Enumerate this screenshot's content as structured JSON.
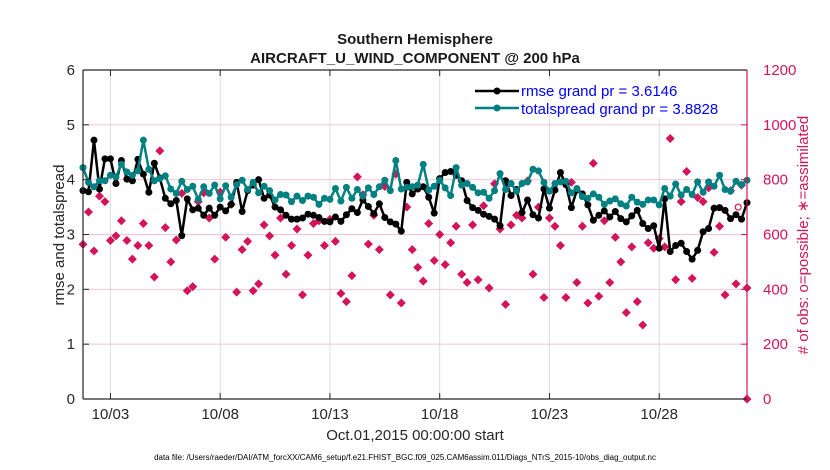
{
  "chart_data": {
    "type": "line",
    "title": "Southern Hemisphere",
    "subtitle": "AIRCRAFT_U_WIND_COMPONENT @ 200 hPa",
    "xlabel": "Oct.01,2015 00:00:00 start",
    "ylabel": "rmse and totalspread",
    "y2label": "# of obs: o=possible; ∗=assimilated",
    "footer": "data file: /Users/raeder/DAI/ATM_forcXX/CAM6_setup/f.e21.FHIST_BGC.f09_025.CAM6assim.011/Diags_NTrS_2015-10/obs_diag_output.nc",
    "x_unit": "days since Oct.01,2015 00:00",
    "xlim": [
      0.75,
      31.0
    ],
    "ylim": [
      0,
      6
    ],
    "y2lim": [
      0,
      1200
    ],
    "yticks": [
      0,
      1,
      2,
      3,
      4,
      5,
      6
    ],
    "y2ticks": [
      0,
      200,
      400,
      600,
      800,
      1000,
      1200
    ],
    "xticks": [
      {
        "x": 2.0,
        "label": "10/03"
      },
      {
        "x": 7.0,
        "label": "10/08"
      },
      {
        "x": 12.0,
        "label": "10/13"
      },
      {
        "x": 17.0,
        "label": "10/18"
      },
      {
        "x": 22.0,
        "label": "10/23"
      },
      {
        "x": 27.0,
        "label": "10/28"
      }
    ],
    "grid": true,
    "legend_position": "top-right",
    "colors": {
      "rmse": "#000000",
      "spread": "#008080",
      "obs": "#d4145a",
      "axis": "#262626",
      "right_axis": "#d4145a",
      "legend_text": "#0000ff",
      "grid": "#dcdcdc",
      "hgrid": "#f2c4d4"
    },
    "x_start": 0.75,
    "x_step": 0.25,
    "series": [
      {
        "name": "rmse grand pr = 3.6146",
        "axis": "left",
        "values": [
          3.8,
          3.78,
          4.72,
          3.83,
          4.38,
          4.38,
          3.93,
          4.35,
          4.01,
          3.98,
          4.37,
          4.1,
          3.77,
          4.3,
          4.03,
          3.66,
          3.56,
          3.62,
          2.98,
          3.65,
          3.45,
          3.48,
          3.35,
          3.48,
          3.35,
          3.5,
          3.43,
          3.55,
          3.95,
          3.42,
          3.8,
          3.9,
          4.0,
          3.66,
          3.72,
          3.5,
          3.45,
          3.35,
          3.28,
          3.28,
          3.3,
          3.37,
          3.35,
          3.31,
          3.24,
          3.23,
          3.32,
          3.24,
          3.36,
          3.47,
          3.4,
          3.63,
          3.51,
          3.38,
          3.56,
          3.31,
          3.23,
          3.19,
          3.06,
          3.95,
          3.74,
          3.83,
          3.87,
          3.68,
          3.39,
          4.02,
          4.13,
          4.15,
          4.08,
          3.98,
          3.62,
          3.49,
          3.44,
          3.37,
          3.33,
          3.28,
          3.16,
          3.98,
          3.71,
          3.82,
          3.4,
          3.63,
          3.36,
          3.3,
          3.83,
          3.48,
          3.81,
          4.13,
          3.91,
          3.49,
          3.81,
          3.74,
          3.54,
          3.26,
          3.35,
          3.43,
          3.32,
          3.42,
          3.29,
          3.23,
          3.34,
          3.44,
          3.2,
          3.11,
          3.16,
          2.75,
          3.65,
          2.69,
          2.8,
          2.84,
          2.69,
          2.55,
          2.71,
          3.05,
          3.11,
          3.48,
          3.49,
          3.44,
          3.29,
          3.36,
          3.28,
          3.58,
          3.63,
          3.49,
          3.49,
          3.91,
          3.7,
          3.78,
          3.88,
          3.97,
          3.71,
          3.9,
          3.6,
          3.9,
          3.64,
          3.95,
          3.76,
          4.24,
          3.86,
          4.11,
          4.0
        ],
        "color": "#000000"
      },
      {
        "name": "totalspread grand pr = 3.8828",
        "axis": "left",
        "values": [
          4.22,
          3.95,
          3.87,
          3.98,
          3.98,
          4.08,
          4.05,
          4.28,
          4.14,
          4.08,
          4.16,
          4.72,
          4.19,
          3.98,
          4.02,
          4.07,
          3.83,
          3.75,
          3.97,
          3.82,
          3.88,
          3.64,
          3.87,
          3.75,
          3.9,
          3.65,
          3.89,
          3.68,
          3.91,
          3.99,
          3.82,
          3.95,
          3.76,
          3.88,
          3.8,
          3.63,
          3.73,
          3.72,
          3.6,
          3.7,
          3.62,
          3.7,
          3.68,
          3.55,
          3.66,
          3.64,
          3.84,
          3.61,
          3.86,
          3.66,
          3.82,
          3.7,
          3.85,
          3.73,
          3.87,
          3.99,
          3.8,
          4.35,
          3.83,
          3.86,
          3.87,
          3.9,
          4.28,
          3.81,
          3.88,
          3.99,
          3.85,
          3.71,
          4.22,
          3.9,
          3.93,
          3.86,
          3.76,
          3.77,
          3.66,
          3.8,
          4.11,
          3.82,
          3.93,
          3.79,
          3.93,
          3.96,
          4.19,
          4.16,
          3.95,
          3.79,
          3.93,
          3.96,
          3.97,
          3.76,
          3.84,
          3.69,
          3.66,
          3.74,
          3.68,
          3.55,
          3.61,
          3.65,
          3.56,
          3.52,
          3.68,
          3.59,
          3.55,
          3.63,
          3.63,
          3.54,
          3.84,
          3.7,
          3.92,
          3.72,
          3.82,
          3.73,
          3.96,
          3.77,
          3.96,
          3.88,
          4.08,
          3.82,
          3.79,
          3.97,
          3.91,
          3.99,
          4.08,
          3.98,
          4.18,
          3.88,
          4.06,
          4.26,
          3.95,
          4.0,
          4.25,
          4.08,
          3.94,
          4.24,
          4.0,
          4.08,
          3.93
        ],
        "color": "#008080"
      }
    ],
    "obs_assimilated": {
      "name": "# of obs assimilated",
      "axis": "right",
      "marker": "∗",
      "values": [
        564,
        682,
        540,
        740,
        720,
        578,
        595,
        650,
        578,
        510,
        560,
        640,
        560,
        445,
        905,
        625,
        500,
        580,
        750,
        395,
        410,
        720,
        752,
        660,
        510,
        755,
        590,
        710,
        390,
        545,
        575,
        395,
        420,
        635,
        595,
        525,
        660,
        455,
        560,
        620,
        380,
        525,
        640,
        650,
        560,
        655,
        575,
        385,
        355,
        450,
        810,
        745,
        565,
        670,
        545,
        775,
        380,
        820,
        350,
        700,
        545,
        480,
        430,
        640,
        505,
        600,
        490,
        570,
        630,
        455,
        425,
        635,
        435,
        705,
        405,
        785,
        620,
        345,
        635,
        670,
        660,
        795,
        455,
        700,
        370,
        660,
        630,
        560,
        370,
        790,
        425,
        630,
        350,
        860,
        375,
        650,
        425,
        590,
        500,
        315,
        555,
        355,
        270,
        570,
        550,
        585,
        555,
        950,
        435,
        720,
        830,
        440,
        735,
        720,
        770,
        535,
        630,
        380,
        760,
        420,
        780,
        405,
        740,
        340,
        425,
        695,
        705,
        375,
        750,
        705,
        335,
        705,
        325
      ],
      "color": "#d4145a"
    },
    "obs_possible": {
      "name": "# of obs possible",
      "axis": "right",
      "marker": "o",
      "values": [
        564,
        682,
        540,
        740,
        720,
        578,
        595,
        650,
        578,
        510,
        560,
        640,
        560,
        445,
        905,
        625,
        500,
        580,
        750,
        395,
        410,
        720,
        752,
        660,
        510,
        755,
        590,
        710,
        390,
        545,
        575,
        395,
        420,
        635,
        595,
        525,
        660,
        455,
        560,
        620,
        380,
        525,
        640,
        650,
        560,
        655,
        575,
        385,
        355,
        450,
        810,
        745,
        565,
        670,
        545,
        775,
        380,
        820,
        350,
        700,
        545,
        480,
        430,
        640,
        505,
        600,
        490,
        570,
        630,
        455,
        425,
        635,
        435,
        705,
        405,
        785,
        620,
        345,
        635,
        670,
        660,
        795,
        455,
        700,
        370,
        660,
        630,
        560,
        370,
        790,
        425,
        630,
        350,
        860,
        375,
        650,
        425,
        590,
        500,
        315,
        555,
        355,
        270,
        570,
        550,
        585,
        555,
        950,
        435,
        720,
        830,
        440,
        735,
        720,
        770,
        535,
        630,
        380,
        760,
        420,
        780,
        405,
        740,
        340,
        425,
        695,
        705,
        375,
        750,
        705,
        335,
        705,
        325
      ],
      "color": "#d4145a"
    }
  }
}
